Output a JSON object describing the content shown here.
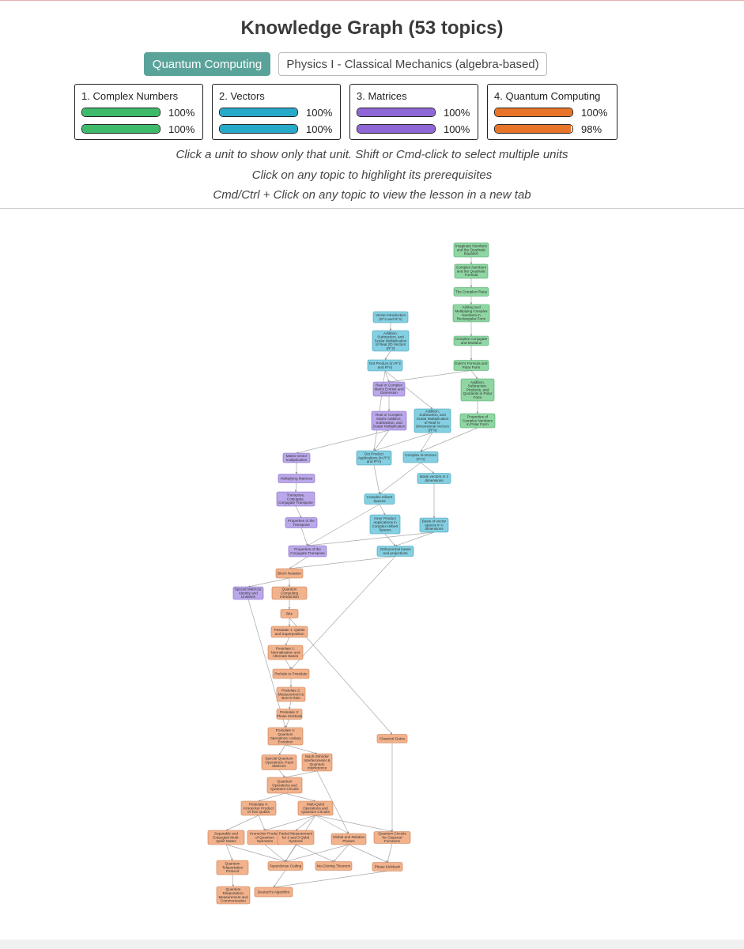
{
  "title": "Knowledge Graph (53 topics)",
  "courses": [
    {
      "label": "Quantum Computing",
      "active": true
    },
    {
      "label": "Physics I - Classical Mechanics (algebra-based)",
      "active": false
    }
  ],
  "units": [
    {
      "name": "1. Complex Numbers",
      "color": "#3dbb6a",
      "progress": [
        {
          "value": 100,
          "label": "100%"
        },
        {
          "value": 100,
          "label": "100%"
        }
      ]
    },
    {
      "name": "2. Vectors",
      "color": "#27a9c9",
      "progress": [
        {
          "value": 100,
          "label": "100%"
        },
        {
          "value": 100,
          "label": "100%"
        }
      ]
    },
    {
      "name": "3. Matrices",
      "color": "#8e66d6",
      "progress": [
        {
          "value": 100,
          "label": "100%"
        },
        {
          "value": 100,
          "label": "100%"
        }
      ]
    },
    {
      "name": "4. Quantum Computing",
      "color": "#e8742a",
      "progress": [
        {
          "value": 100,
          "label": "100%"
        },
        {
          "value": 98,
          "label": "98%"
        }
      ]
    }
  ],
  "instructions": [
    "Click a unit to show only that unit. Shift or Cmd-click to select multiple units",
    "Click on any topic to highlight its prerequisites",
    "Cmd/Ctrl + Click on any topic to view the lesson in a new tab"
  ],
  "node_colors": {
    "complex": {
      "fill": "#8fd6a3",
      "stroke": "#4aa36a"
    },
    "vectors": {
      "fill": "#84d0e2",
      "stroke": "#3d9bb4"
    },
    "matrices": {
      "fill": "#bba8ea",
      "stroke": "#7d62c2"
    },
    "quantum": {
      "fill": "#f2b28c",
      "stroke": "#c77a4e"
    }
  },
  "nodes": [
    {
      "id": "c1",
      "unit": "complex",
      "lines": [
        "Imaginary Numbers",
        "and the Quadratic",
        "Equation"
      ]
    },
    {
      "id": "c2",
      "unit": "complex",
      "lines": [
        "Complex Numbers",
        "and the Quadratic",
        "Formula"
      ]
    },
    {
      "id": "c3",
      "unit": "complex",
      "lines": [
        "The Complex Plane"
      ]
    },
    {
      "id": "c4",
      "unit": "complex",
      "lines": [
        "Adding and",
        "Multiplying Complex",
        "Numbers in",
        "Rectangular Form"
      ]
    },
    {
      "id": "c5",
      "unit": "complex",
      "lines": [
        "Complex Conjugate",
        "and Modulus"
      ]
    },
    {
      "id": "c6",
      "unit": "complex",
      "lines": [
        "Euler's Formula and",
        "Polar Form"
      ]
    },
    {
      "id": "c7",
      "unit": "complex",
      "lines": [
        "Addition,",
        "Subtraction,",
        "Products, and",
        "Quotients in Polar",
        "Form"
      ]
    },
    {
      "id": "c8",
      "unit": "complex",
      "lines": [
        "Properties of",
        "Complex Numbers",
        "in Polar Form"
      ]
    },
    {
      "id": "v1",
      "unit": "vectors",
      "lines": [
        "Vector Introduction",
        "(R^2 and R^n)"
      ]
    },
    {
      "id": "v2",
      "unit": "vectors",
      "lines": [
        "Addition,",
        "Subtraction, and",
        "Scalar Multiplication",
        "of Real 2D Vectors",
        "(R^2)"
      ]
    },
    {
      "id": "v3",
      "unit": "vectors",
      "lines": [
        "Dot Product (in R^2",
        "and R^n)"
      ]
    },
    {
      "id": "v4",
      "unit": "vectors",
      "lines": [
        "Addition,",
        "Subtraction, and",
        "Scalar Multiplication",
        "of Real N-",
        "Dimensional Vectors",
        "(R^n)"
      ]
    },
    {
      "id": "v5",
      "unit": "vectors",
      "lines": [
        "Dot Product",
        "Applications (in R^2",
        "and R^n)"
      ]
    },
    {
      "id": "v6",
      "unit": "vectors",
      "lines": [
        "Complex N-Vectors",
        "(C^n)"
      ]
    },
    {
      "id": "v7",
      "unit": "vectors",
      "lines": [
        "Basis vectors in 2",
        "dimensions"
      ]
    },
    {
      "id": "v8",
      "unit": "vectors",
      "lines": [
        "Complex Hilbert",
        "Spaces"
      ]
    },
    {
      "id": "v9",
      "unit": "vectors",
      "lines": [
        "Inner Product",
        "Applications in",
        "Complex Hilbert",
        "Spaces"
      ]
    },
    {
      "id": "v10",
      "unit": "vectors",
      "lines": [
        "Basis of vector",
        "spaces in n",
        "dimensions"
      ]
    },
    {
      "id": "v11",
      "unit": "vectors",
      "lines": [
        "Orthonormal bases",
        "and projections"
      ]
    },
    {
      "id": "m1",
      "unit": "matrices",
      "lines": [
        "Real or Complex",
        "Matrix Entries and",
        "Dimension"
      ]
    },
    {
      "id": "m2",
      "unit": "matrices",
      "lines": [
        "Real or Complex",
        "Matrix Addition,",
        "Subtraction, and",
        "Scalar Multiplication"
      ]
    },
    {
      "id": "m3",
      "unit": "matrices",
      "lines": [
        "Matrix-vector",
        "multiplication"
      ]
    },
    {
      "id": "m4",
      "unit": "matrices",
      "lines": [
        "Multiplying Matrices"
      ]
    },
    {
      "id": "m5",
      "unit": "matrices",
      "lines": [
        "Transpose,",
        "Conjugate,",
        "Conjugate Transpose"
      ]
    },
    {
      "id": "m6",
      "unit": "matrices",
      "lines": [
        "Properties of the",
        "Transpose"
      ]
    },
    {
      "id": "m7",
      "unit": "matrices",
      "lines": [
        "Properties of the",
        "Conjugate Transpose"
      ]
    },
    {
      "id": "m8",
      "unit": "matrices",
      "lines": [
        "Special Matrices:",
        "Identity and",
        "Unitaries"
      ]
    },
    {
      "id": "q1",
      "unit": "quantum",
      "lines": [
        "Bloch Notation"
      ]
    },
    {
      "id": "q2",
      "unit": "quantum",
      "lines": [
        "Quantum",
        "Computing",
        "Introduction"
      ]
    },
    {
      "id": "q3",
      "unit": "quantum",
      "lines": [
        "Bits"
      ]
    },
    {
      "id": "q4",
      "unit": "quantum",
      "lines": [
        "Postulate 1: Qubits",
        "and Superposition"
      ]
    },
    {
      "id": "q5",
      "unit": "quantum",
      "lines": [
        "Postulate 1:",
        "Normalization and",
        "Alternate Bases"
      ]
    },
    {
      "id": "q6",
      "unit": "quantum",
      "lines": [
        "Prelude to Postulate"
      ]
    },
    {
      "id": "q7",
      "unit": "quantum",
      "lines": [
        "Postulate 2:",
        "Measurement &",
        "Born's Rule"
      ]
    },
    {
      "id": "q8",
      "unit": "quantum",
      "lines": [
        "Postulate 3:",
        "Phase Kickback"
      ]
    },
    {
      "id": "q9",
      "unit": "quantum",
      "lines": [
        "Postulate 4:",
        "Quantum",
        "Operations: Unitary",
        "Evolution"
      ]
    },
    {
      "id": "q10",
      "unit": "quantum",
      "lines": [
        "Special Quantum",
        "Operations: Pauli",
        "Matrices"
      ]
    },
    {
      "id": "q11",
      "unit": "quantum",
      "lines": [
        "Mach-Zehnder",
        "Interferometer &",
        "Quantum",
        "Interference"
      ]
    },
    {
      "id": "q12",
      "unit": "quantum",
      "lines": [
        "Classical Gates"
      ]
    },
    {
      "id": "q13",
      "unit": "quantum",
      "lines": [
        "Quantum",
        "Operations and",
        "Quantum Circuits"
      ]
    },
    {
      "id": "q14",
      "unit": "quantum",
      "lines": [
        "Postulate 4:",
        "Kronecker Product",
        "of Two Qubits"
      ]
    },
    {
      "id": "q15",
      "unit": "quantum",
      "lines": [
        "Multi-Qubit",
        "Operations and",
        "Quantum Circuits"
      ]
    },
    {
      "id": "q16",
      "unit": "quantum",
      "lines": [
        "Separable and",
        "Entangled Multi-",
        "Qubit States"
      ]
    },
    {
      "id": "q17",
      "unit": "quantum",
      "lines": [
        "Kronecker Product",
        "of Quantum",
        "Operators"
      ]
    },
    {
      "id": "q18",
      "unit": "quantum",
      "lines": [
        "Partial Measurement",
        "for 2 and 3 Qubit",
        "Systems"
      ]
    },
    {
      "id": "q19",
      "unit": "quantum",
      "lines": [
        "Global and Relative",
        "Phases"
      ]
    },
    {
      "id": "q20",
      "unit": "quantum",
      "lines": [
        "Quantum Circuits",
        "for Classical",
        "Functions"
      ]
    },
    {
      "id": "q21",
      "unit": "quantum",
      "lines": [
        "Quantum",
        "Teleportation",
        "Protocol"
      ]
    },
    {
      "id": "q22",
      "unit": "quantum",
      "lines": [
        "Superdense Coding"
      ]
    },
    {
      "id": "q23",
      "unit": "quantum",
      "lines": [
        "No-Cloning Theorem"
      ]
    },
    {
      "id": "q24",
      "unit": "quantum",
      "lines": [
        "Phase Kickback"
      ]
    },
    {
      "id": "q25",
      "unit": "quantum",
      "lines": [
        "Quantum",
        "Teleportation:",
        "Measurement and",
        "Communication"
      ]
    },
    {
      "id": "q26",
      "unit": "quantum",
      "lines": [
        "Deutsch's Algorithm"
      ]
    }
  ],
  "edges": [
    [
      "c1",
      "c2"
    ],
    [
      "c2",
      "c3"
    ],
    [
      "c3",
      "c4"
    ],
    [
      "c4",
      "c5"
    ],
    [
      "c5",
      "c6"
    ],
    [
      "c6",
      "c7"
    ],
    [
      "c7",
      "c8"
    ],
    [
      "v1",
      "v2"
    ],
    [
      "v2",
      "v3"
    ],
    [
      "v3",
      "m1"
    ],
    [
      "v3",
      "v4"
    ],
    [
      "v3",
      "v5"
    ],
    [
      "m1",
      "m2"
    ],
    [
      "v4",
      "v6"
    ],
    [
      "c6",
      "m1"
    ],
    [
      "c8",
      "v6"
    ],
    [
      "m2",
      "m3"
    ],
    [
      "m2",
      "v5"
    ],
    [
      "v4",
      "v5"
    ],
    [
      "v6",
      "v7"
    ],
    [
      "v6",
      "v8"
    ],
    [
      "m3",
      "m4"
    ],
    [
      "m4",
      "m5"
    ],
    [
      "m5",
      "m6"
    ],
    [
      "v5",
      "v8"
    ],
    [
      "v8",
      "v9"
    ],
    [
      "v7",
      "v10"
    ],
    [
      "v10",
      "v11"
    ],
    [
      "v9",
      "v11"
    ],
    [
      "m6",
      "m7"
    ],
    [
      "v8",
      "m7"
    ],
    [
      "v10",
      "m7"
    ],
    [
      "m7",
      "q1"
    ],
    [
      "v11",
      "q1"
    ],
    [
      "q1",
      "m8"
    ],
    [
      "q1",
      "q2"
    ],
    [
      "q2",
      "q3"
    ],
    [
      "q3",
      "q4"
    ],
    [
      "q4",
      "q5"
    ],
    [
      "q5",
      "q6"
    ],
    [
      "v11",
      "q6"
    ],
    [
      "q6",
      "q7"
    ],
    [
      "q7",
      "q8"
    ],
    [
      "q8",
      "q9"
    ],
    [
      "m8",
      "q9"
    ],
    [
      "q9",
      "q10"
    ],
    [
      "q9",
      "q11"
    ],
    [
      "q10",
      "q13"
    ],
    [
      "q11",
      "q13"
    ],
    [
      "q3",
      "q12"
    ],
    [
      "q12",
      "q20"
    ],
    [
      "q13",
      "q14"
    ],
    [
      "q13",
      "q15"
    ],
    [
      "q14",
      "q16"
    ],
    [
      "q14",
      "q17"
    ],
    [
      "q15",
      "q17"
    ],
    [
      "q15",
      "q18"
    ],
    [
      "q15",
      "q19"
    ],
    [
      "q15",
      "q20"
    ],
    [
      "q11",
      "q19"
    ],
    [
      "q16",
      "q21"
    ],
    [
      "q17",
      "q22"
    ],
    [
      "q18",
      "q22"
    ],
    [
      "q16",
      "q22"
    ],
    [
      "q19",
      "q23"
    ],
    [
      "q18",
      "q23"
    ],
    [
      "q19",
      "q24"
    ],
    [
      "q20",
      "q24"
    ],
    [
      "q21",
      "q25"
    ],
    [
      "q22",
      "q26"
    ],
    [
      "q24",
      "q26"
    ],
    [
      "q15",
      "q22"
    ],
    [
      "q19",
      "q22"
    ]
  ]
}
